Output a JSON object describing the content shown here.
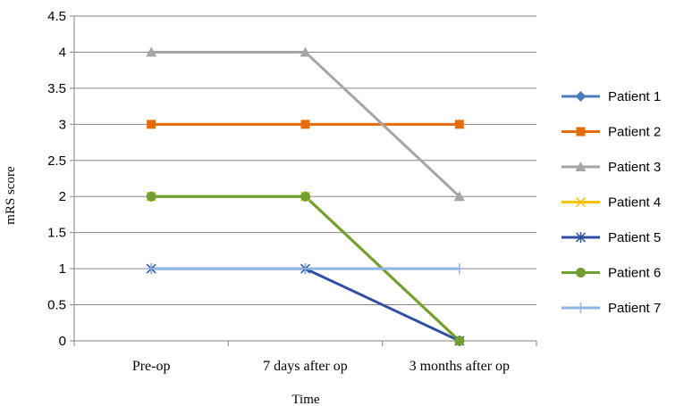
{
  "chart_data": {
    "type": "line",
    "title": "",
    "xlabel": "Time",
    "ylabel": "mRS score",
    "categories": [
      "Pre-op",
      "7 days after op",
      "3 months after op"
    ],
    "ylim": [
      0,
      4.5
    ],
    "ytick_step": 0.5,
    "yticks": [
      "0",
      "0.5",
      "1",
      "1.5",
      "2",
      "2.5",
      "3",
      "3.5",
      "4",
      "4.5"
    ],
    "grid": "horizontal",
    "legend_position": "right",
    "series": [
      {
        "name": "Patient 1",
        "values": [
          2,
          2,
          0
        ],
        "color": "#4a7ebb",
        "marker": "diamond"
      },
      {
        "name": "Patient 2",
        "values": [
          3,
          3,
          3
        ],
        "color": "#e46c0a",
        "marker": "square"
      },
      {
        "name": "Patient 3",
        "values": [
          4,
          4,
          2
        ],
        "color": "#a5a5a5",
        "marker": "triangle"
      },
      {
        "name": "Patient 4",
        "values": [
          2,
          2,
          0
        ],
        "color": "#ffc000",
        "marker": "x"
      },
      {
        "name": "Patient 5",
        "values": [
          1,
          1,
          0
        ],
        "color": "#2e4fa3",
        "marker": "star"
      },
      {
        "name": "Patient 6",
        "values": [
          2,
          2,
          0
        ],
        "color": "#70a030",
        "marker": "circle"
      },
      {
        "name": "Patient 7",
        "values": [
          1,
          1,
          1
        ],
        "color": "#8eb4e3",
        "marker": "plus"
      }
    ]
  }
}
